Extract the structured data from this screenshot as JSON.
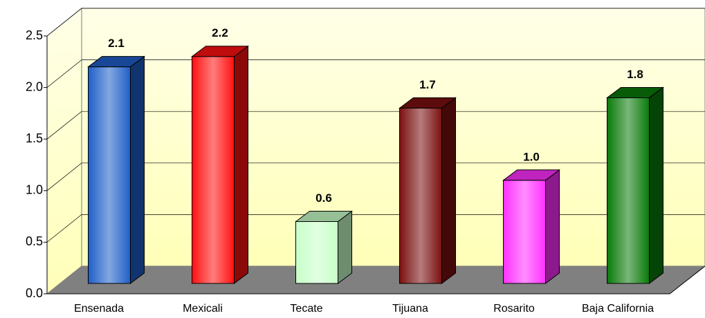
{
  "chart_data": {
    "type": "bar",
    "categories": [
      "Ensenada",
      "Mexicali",
      "Tecate",
      "Tijuana",
      "Rosarito",
      "Baja California"
    ],
    "values": [
      2.1,
      2.2,
      0.6,
      1.7,
      1.0,
      1.8
    ],
    "value_labels": [
      "2.1",
      "2.2",
      "0.6",
      "1.7",
      "1.0",
      "1.8"
    ],
    "colors": [
      "#1f5fc8",
      "#ff1010",
      "#c8ffc8",
      "#7a1010",
      "#ff30ff",
      "#0a7a0a"
    ],
    "ylim": [
      0,
      2.5
    ],
    "yticks": [
      {
        "value": 0,
        "label": "0.0"
      },
      0.5,
      {
        "value": 1,
        "label": "1.0"
      },
      1.5,
      {
        "value": 2,
        "label": "2.0"
      },
      2.5
    ],
    "grid": true
  }
}
